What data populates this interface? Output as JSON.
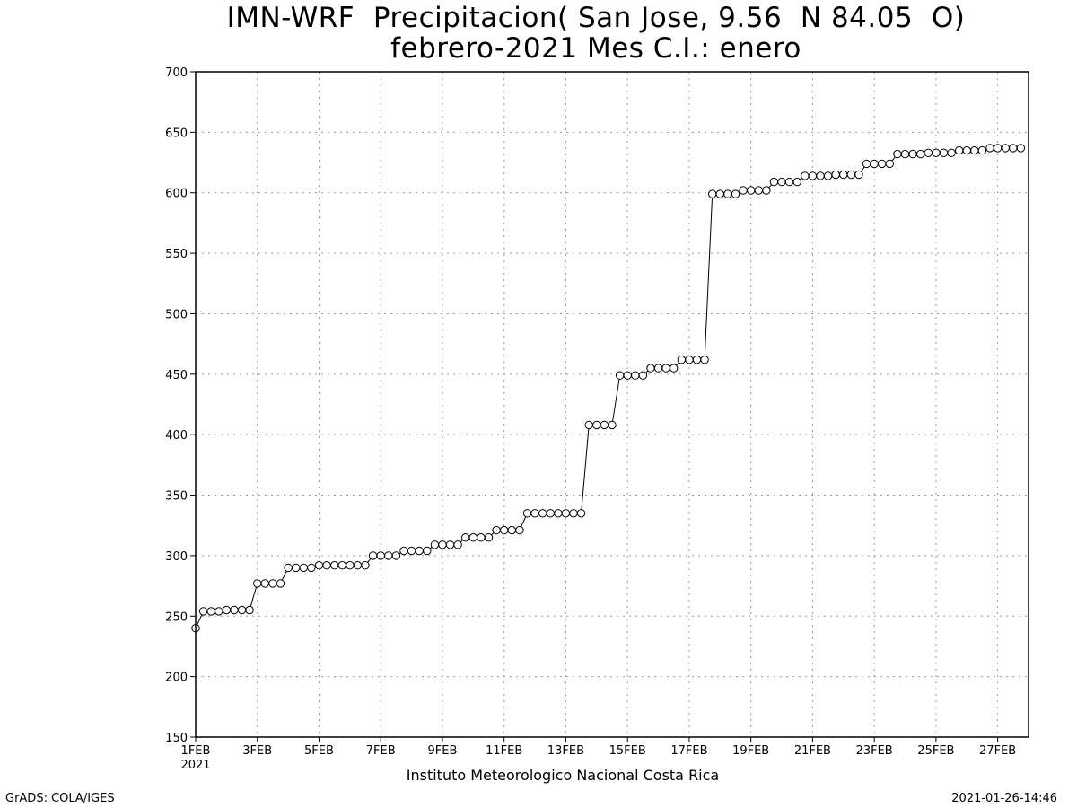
{
  "title_line1": "IMN-WRF  Precipitacion( San Jose, 9.56  N 84.05  O)",
  "title_line2": "febrero-2021 Mes C.I.: enero",
  "caption": "Instituto Meteorologico Nacional Costa Rica",
  "footer_left": "GrADS: COLA/IGES",
  "footer_right": "2021-01-26-14:46",
  "x_year_label": "2021",
  "chart_data": {
    "type": "line",
    "title": "IMN-WRF  Precipitacion( San Jose, 9.56  N 84.05  O)",
    "subtitle": "febrero-2021 Mes C.I.: enero",
    "xlabel": "",
    "ylabel": "",
    "xlim": [
      1,
      28
    ],
    "ylim": [
      150,
      700
    ],
    "y_ticks": [
      150,
      200,
      250,
      300,
      350,
      400,
      450,
      500,
      550,
      600,
      650,
      700
    ],
    "x_ticks": [
      1,
      3,
      5,
      7,
      9,
      11,
      13,
      15,
      17,
      19,
      21,
      23,
      25,
      27
    ],
    "x_tick_labels": [
      "1FEB",
      "3FEB",
      "5FEB",
      "7FEB",
      "9FEB",
      "11FEB",
      "13FEB",
      "15FEB",
      "17FEB",
      "19FEB",
      "21FEB",
      "23FEB",
      "25FEB",
      "27FEB"
    ],
    "grid": true,
    "marker": "open-circle",
    "line_color": "#000000",
    "x_unit": "day of February 2021 (values every 6 hours)",
    "series": [
      {
        "values": [
          240,
          254,
          254,
          254,
          255,
          255,
          255,
          255,
          277,
          277,
          277,
          277,
          290,
          290,
          290,
          290,
          292,
          292,
          292,
          292,
          292,
          292,
          292,
          300,
          300,
          300,
          300,
          304,
          304,
          304,
          304,
          309,
          309,
          309,
          309,
          315,
          315,
          315,
          315,
          321,
          321,
          321,
          321,
          335,
          335,
          335,
          335,
          335,
          335,
          335,
          335,
          408,
          408,
          408,
          408,
          449,
          449,
          449,
          449,
          455,
          455,
          455,
          455,
          462,
          462,
          462,
          462,
          599,
          599,
          599,
          599,
          602,
          602,
          602,
          602,
          609,
          609,
          609,
          609,
          614,
          614,
          614,
          614,
          615,
          615,
          615,
          615,
          624,
          624,
          624,
          624,
          632,
          632,
          632,
          632,
          633,
          633,
          633,
          633,
          635,
          635,
          635,
          635,
          637,
          637,
          637,
          637,
          637
        ],
        "x_start": 1,
        "x_step": 0.25
      }
    ]
  }
}
